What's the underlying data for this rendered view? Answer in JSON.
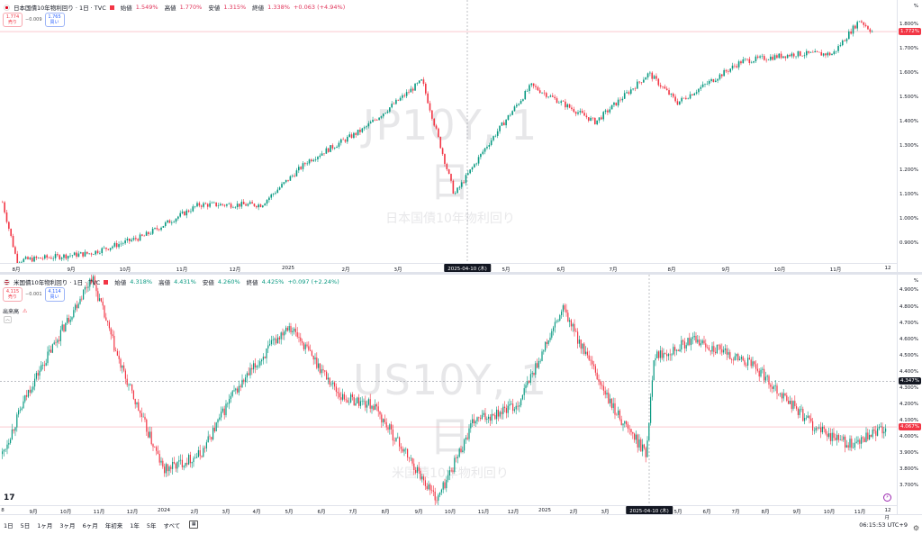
{
  "top": {
    "title": "日本国債10年物利回り · 1日 · TVC",
    "open_label": "始値",
    "open": "1.549%",
    "high_label": "高値",
    "high": "1.770%",
    "low_label": "安値",
    "low": "1.315%",
    "close_label": "終値",
    "close": "1.338%",
    "change": "+0.063 (+4.94%)",
    "sell_price": "1.774",
    "sell_label": "売り",
    "spread": "−0.009",
    "buy_price": "1.765",
    "buy_label": "買い",
    "watermark": "JP10Y, 1日",
    "watermark_sub": "日本国債10年物利回り",
    "yaxis_unit": "%",
    "yticks": [
      "1.800%",
      "1.700%",
      "1.600%",
      "1.500%",
      "1.400%",
      "1.300%",
      "1.200%",
      "1.100%",
      "1.000%",
      "0.900%"
    ],
    "last_price": "1.772%",
    "xticks": [
      "8月",
      "9月",
      "10月",
      "11月",
      "12月",
      "2025",
      "2月",
      "3月",
      "5月",
      "6月",
      "7月",
      "8月",
      "9月",
      "10月",
      "11月",
      "12月"
    ],
    "cursor_date": "2025-04-10 (木)",
    "chart_data": {
      "type": "candlestick",
      "key_points": [
        {
          "x": "2024-07-28",
          "y": 1.07
        },
        {
          "x": "2024-08-05",
          "y": 0.83
        },
        {
          "x": "2024-09-15",
          "y": 0.86
        },
        {
          "x": "2024-10-15",
          "y": 0.93
        },
        {
          "x": "2024-11-15",
          "y": 1.06
        },
        {
          "x": "2024-12-20",
          "y": 1.06
        },
        {
          "x": "2025-01-15",
          "y": 1.24
        },
        {
          "x": "2025-02-15",
          "y": 1.37
        },
        {
          "x": "2025-03-20",
          "y": 1.57
        },
        {
          "x": "2025-04-07",
          "y": 1.1
        },
        {
          "x": "2025-04-25",
          "y": 1.3
        },
        {
          "x": "2025-05-20",
          "y": 1.55
        },
        {
          "x": "2025-06-25",
          "y": 1.4
        },
        {
          "x": "2025-07-25",
          "y": 1.6
        },
        {
          "x": "2025-08-10",
          "y": 1.48
        },
        {
          "x": "2025-09-15",
          "y": 1.65
        },
        {
          "x": "2025-10-15",
          "y": 1.68
        },
        {
          "x": "2025-11-05",
          "y": 1.68
        },
        {
          "x": "2025-11-20",
          "y": 1.82
        },
        {
          "x": "2025-11-27",
          "y": 1.772
        }
      ],
      "ylim": [
        0.85,
        1.85
      ]
    }
  },
  "bottom": {
    "title": "米国債10年物利回り · 1日 · TVC",
    "open_label": "始値",
    "open": "4.318%",
    "high_label": "高値",
    "high": "4.431%",
    "low_label": "安値",
    "low": "4.260%",
    "close_label": "終値",
    "close": "4.425%",
    "change": "+0.097 (+2.24%)",
    "sell_price": "4.115",
    "sell_label": "売り",
    "spread": "−0.001",
    "buy_price": "4.114",
    "buy_label": "買い",
    "volume_label": "出来高",
    "watermark": "US10Y, 1日",
    "watermark_sub": "米国債10年物利回り",
    "yaxis_unit": "%",
    "yticks": [
      "4.900%",
      "4.800%",
      "4.700%",
      "4.600%",
      "4.500%",
      "4.400%",
      "4.300%",
      "4.200%",
      "4.100%",
      "4.000%",
      "3.900%",
      "3.800%",
      "3.700%"
    ],
    "crosshair_price": "4.347%",
    "last_price": "4.067%",
    "xticks": [
      "8",
      "9月",
      "10月",
      "11月",
      "12月",
      "2024",
      "2月",
      "3月",
      "4月",
      "5月",
      "6月",
      "7月",
      "8月",
      "9月",
      "10月",
      "11月",
      "12月",
      "2025",
      "2月",
      "3月",
      "5月",
      "6月",
      "7月",
      "8月",
      "9月",
      "10月",
      "11月",
      "12月"
    ],
    "cursor_date": "2025-04-10 (木)",
    "chart_data": {
      "type": "candlestick",
      "key_points": [
        {
          "x": "2023-07-25",
          "y": 3.9
        },
        {
          "x": "2023-08-20",
          "y": 4.3
        },
        {
          "x": "2023-10-19",
          "y": 4.99
        },
        {
          "x": "2023-11-15",
          "y": 4.45
        },
        {
          "x": "2023-12-27",
          "y": 3.8
        },
        {
          "x": "2024-02-01",
          "y": 3.9
        },
        {
          "x": "2024-03-01",
          "y": 4.25
        },
        {
          "x": "2024-04-25",
          "y": 4.7
        },
        {
          "x": "2024-06-15",
          "y": 4.25
        },
        {
          "x": "2024-07-15",
          "y": 4.2
        },
        {
          "x": "2024-09-15",
          "y": 3.62
        },
        {
          "x": "2024-10-20",
          "y": 4.1
        },
        {
          "x": "2024-12-01",
          "y": 4.2
        },
        {
          "x": "2025-01-14",
          "y": 4.79
        },
        {
          "x": "2025-03-01",
          "y": 4.2
        },
        {
          "x": "2025-04-04",
          "y": 3.9
        },
        {
          "x": "2025-04-11",
          "y": 4.5
        },
        {
          "x": "2025-05-20",
          "y": 4.6
        },
        {
          "x": "2025-07-15",
          "y": 4.45
        },
        {
          "x": "2025-09-15",
          "y": 4.05
        },
        {
          "x": "2025-10-20",
          "y": 3.95
        },
        {
          "x": "2025-11-20",
          "y": 4.067
        }
      ],
      "ylim": [
        3.63,
        4.98
      ]
    }
  },
  "timeframes": [
    "1日",
    "5日",
    "1ヶ月",
    "3ヶ月",
    "6ヶ月",
    "年初来",
    "1年",
    "5年",
    "すべて"
  ],
  "clock": "06:15:53 UTC+9"
}
